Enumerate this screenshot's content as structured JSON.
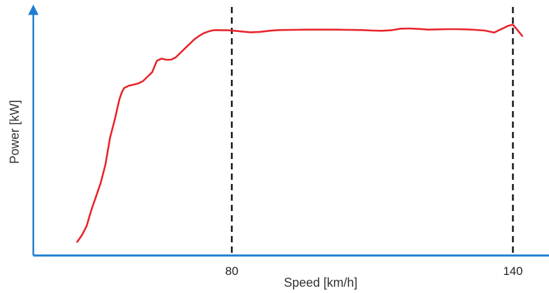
{
  "chart_data": {
    "type": "line",
    "title": "",
    "xlabel": "Speed [km/h]",
    "ylabel": "Power [kW]",
    "x_ticks": [
      80,
      140
    ],
    "xlim": [
      40,
      148
    ],
    "ylim": [
      0,
      100
    ],
    "grid": false,
    "colors": {
      "series": "#e8242b",
      "axis": "#1e7fd0",
      "reference_lines": "#111111"
    },
    "reference_lines_x": [
      80,
      140
    ],
    "series": [
      {
        "x": [
          47,
          48,
          49,
          50,
          51,
          52,
          53,
          54,
          55,
          56,
          56.5,
          57,
          58,
          59,
          60,
          61,
          62,
          63,
          64,
          65,
          66,
          67,
          68,
          69,
          70,
          71,
          72,
          73,
          74,
          75,
          76,
          77,
          78,
          79,
          80,
          81,
          82,
          84,
          86,
          88,
          90,
          93,
          96,
          99,
          102,
          105,
          108,
          110,
          112,
          114,
          116,
          118,
          120,
          122,
          124,
          126,
          128,
          130,
          132,
          134,
          136,
          137,
          138,
          139,
          140,
          141,
          142
        ],
        "y": [
          6,
          9,
          13,
          20,
          26,
          32,
          40,
          52,
          60,
          69,
          72,
          74,
          75,
          75.5,
          76,
          77,
          79,
          81,
          86,
          87,
          86.5,
          86.5,
          87.5,
          89.5,
          91.5,
          93.5,
          95.5,
          97,
          98.2,
          99,
          99.5,
          99.6,
          99.5,
          99.5,
          99.4,
          99.2,
          99,
          98.6,
          98.8,
          99.3,
          99.6,
          99.7,
          99.8,
          99.8,
          99.8,
          99.7,
          99.6,
          99.4,
          99.3,
          99.5,
          100.2,
          100.3,
          100.1,
          99.8,
          99.9,
          100,
          100,
          99.9,
          99.7,
          99.4,
          98.5,
          99.5,
          100.5,
          101.5,
          102,
          99.5,
          97
        ]
      }
    ]
  }
}
